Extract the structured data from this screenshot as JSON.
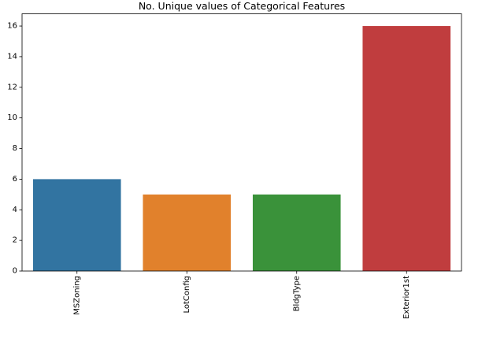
{
  "chart_data": {
    "type": "bar",
    "title": "No. Unique values of Categorical Features",
    "xlabel": "",
    "ylabel": "",
    "categories": [
      "MSZoning",
      "LotConfig",
      "BldgType",
      "Exterior1st"
    ],
    "values": [
      6,
      5,
      5,
      16
    ],
    "colors": [
      "#3274a1",
      "#e1812c",
      "#3a923a",
      "#c03d3e"
    ],
    "ylim": [
      0,
      16.8
    ],
    "yticks": [
      0,
      2,
      4,
      6,
      8,
      10,
      12,
      14,
      16
    ],
    "grid": false,
    "x_tick_rotation": "vertical"
  }
}
